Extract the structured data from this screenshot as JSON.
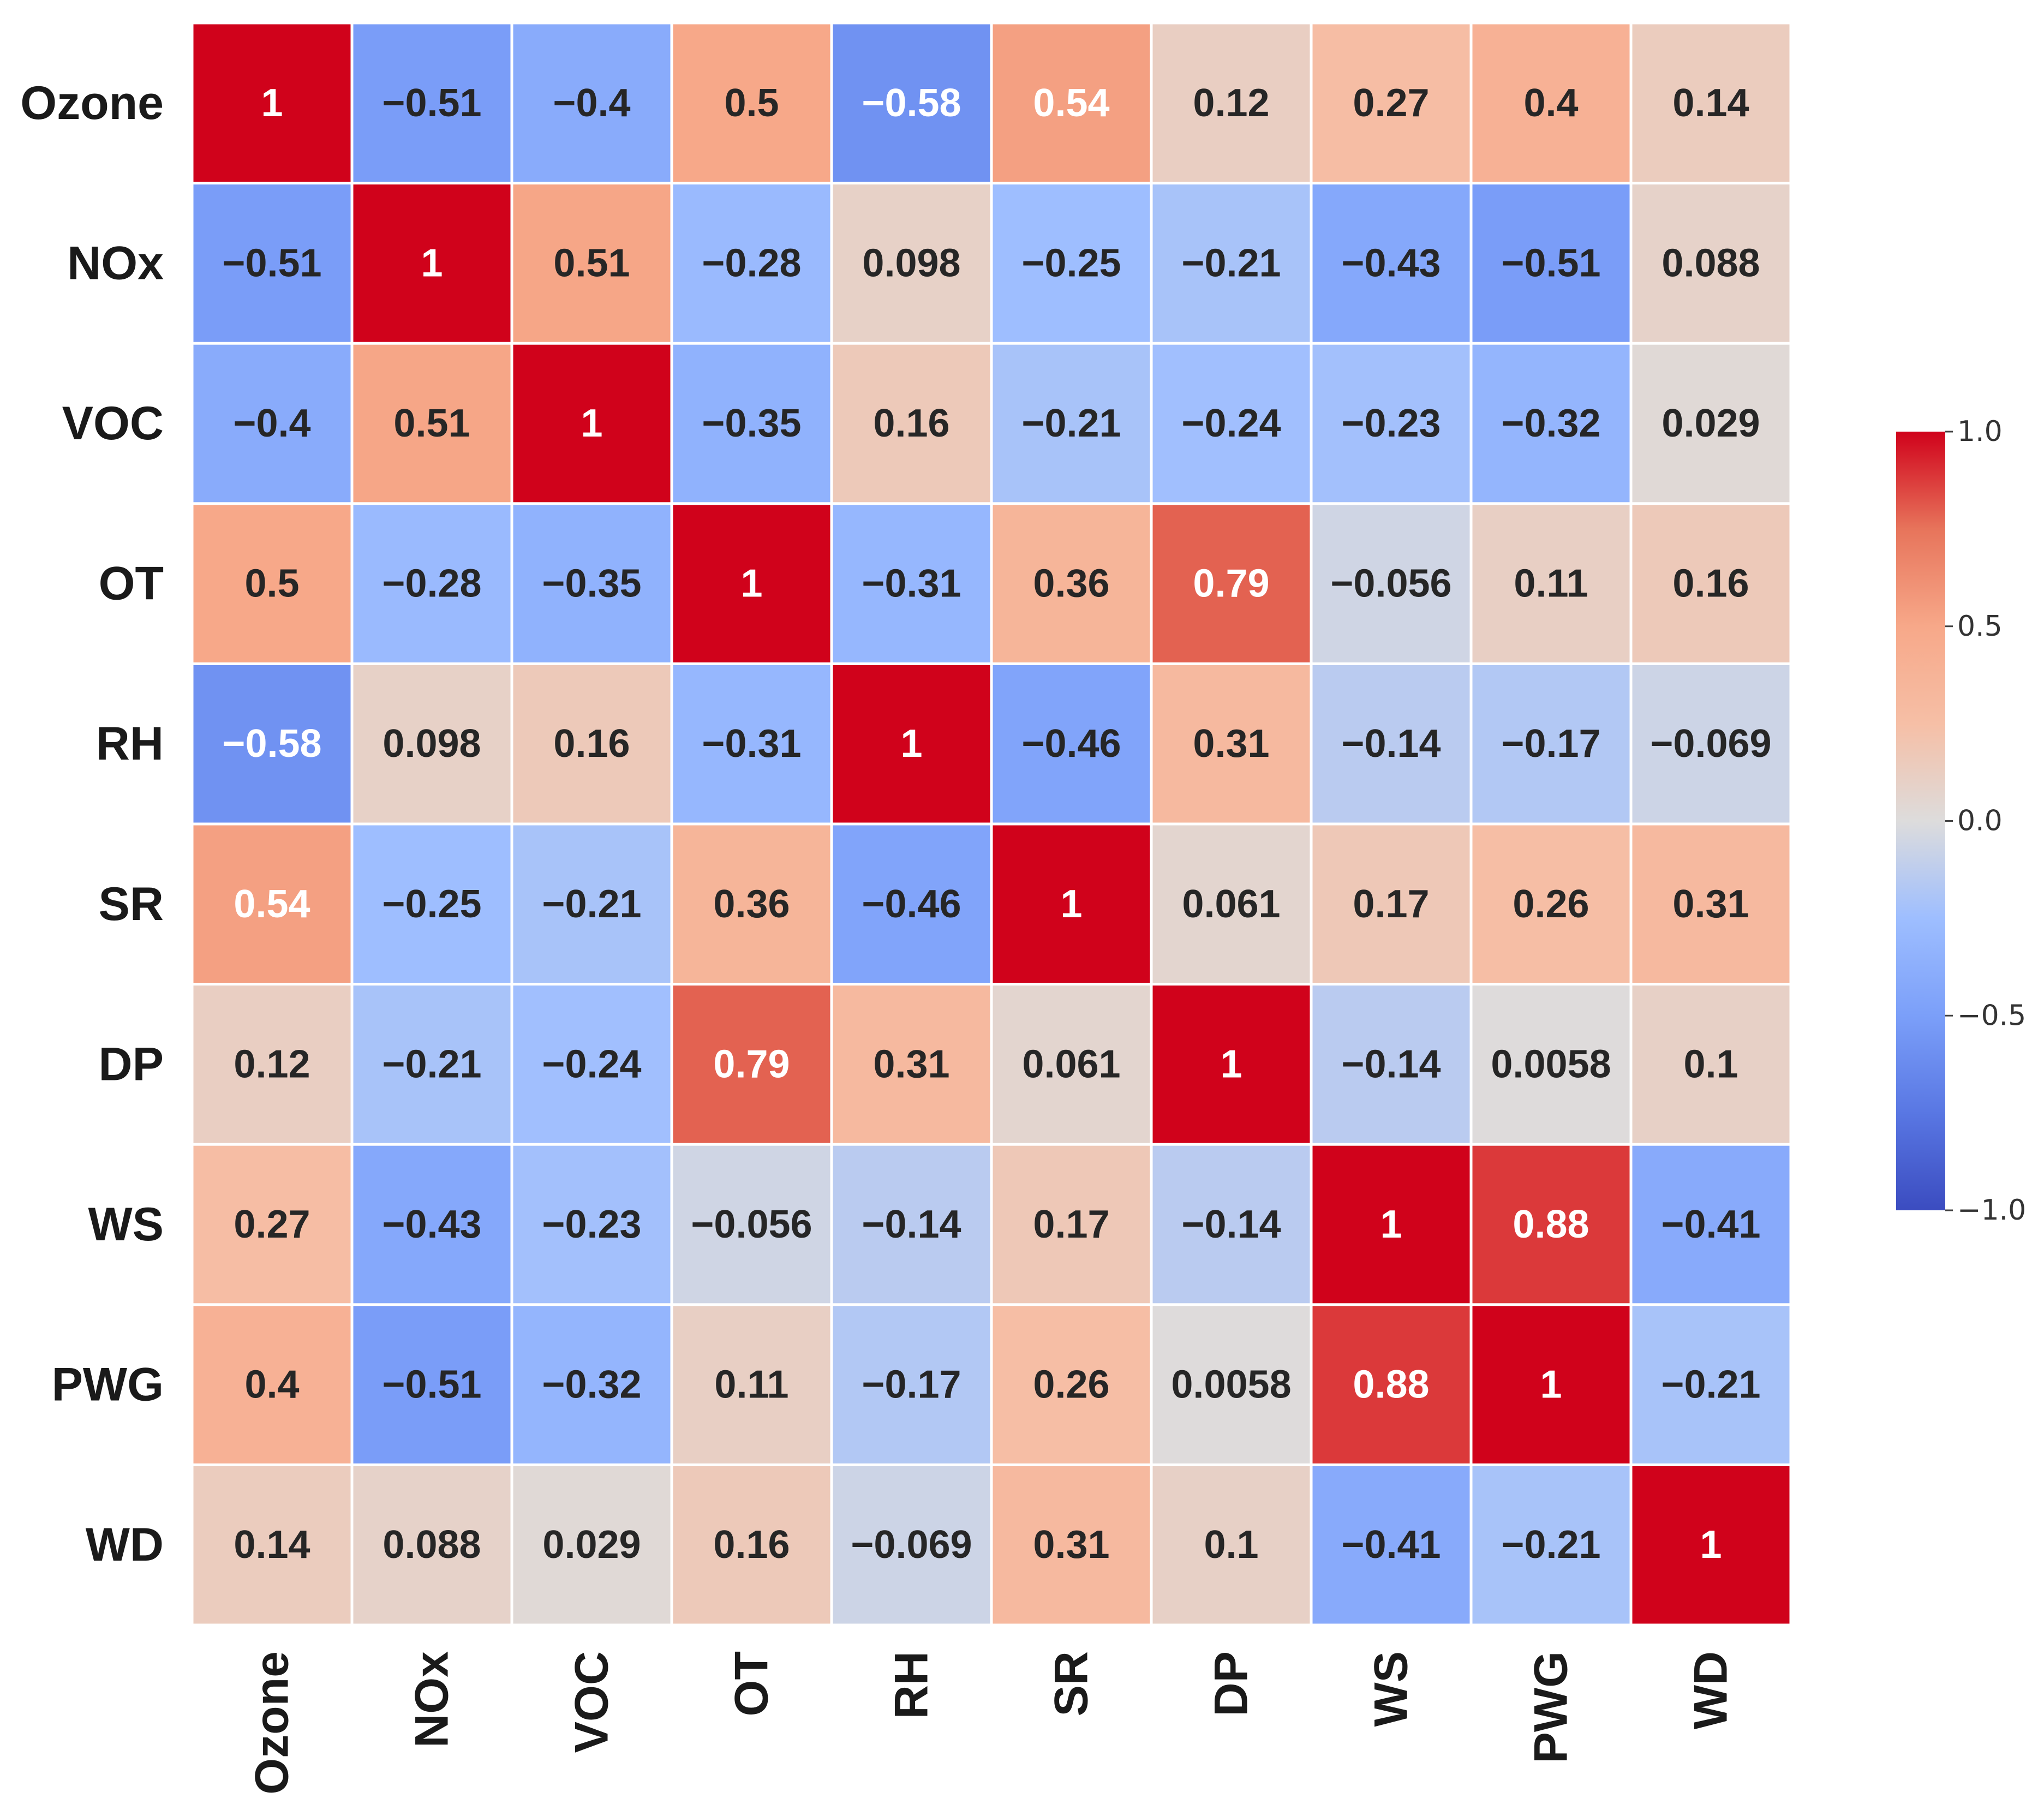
{
  "chart_data": {
    "type": "heatmap",
    "title": "",
    "xlabel": "",
    "ylabel": "",
    "row_labels": [
      "Ozone",
      "NOx",
      "VOC",
      "OT",
      "RH",
      "SR",
      "DP",
      "WS",
      "PWG",
      "WD"
    ],
    "col_labels": [
      "Ozone",
      "NOx",
      "VOC",
      "OT",
      "RH",
      "SR",
      "DP",
      "WS",
      "PWG",
      "WD"
    ],
    "values": [
      [
        1,
        -0.51,
        -0.4,
        0.5,
        -0.58,
        0.54,
        0.12,
        0.27,
        0.4,
        0.14
      ],
      [
        -0.51,
        1,
        0.51,
        -0.28,
        0.098,
        -0.25,
        -0.21,
        -0.43,
        -0.51,
        0.088
      ],
      [
        -0.4,
        0.51,
        1,
        -0.35,
        0.16,
        -0.21,
        -0.24,
        -0.23,
        -0.32,
        0.029
      ],
      [
        0.5,
        -0.28,
        -0.35,
        1,
        -0.31,
        0.36,
        0.79,
        -0.056,
        0.11,
        0.16
      ],
      [
        -0.58,
        0.098,
        0.16,
        -0.31,
        1,
        -0.46,
        0.31,
        -0.14,
        -0.17,
        -0.069
      ],
      [
        0.54,
        -0.25,
        -0.21,
        0.36,
        -0.46,
        1,
        0.061,
        0.17,
        0.26,
        0.31
      ],
      [
        0.12,
        -0.21,
        -0.24,
        0.79,
        0.31,
        0.061,
        1,
        -0.14,
        0.0058,
        0.1
      ],
      [
        0.27,
        -0.43,
        -0.23,
        -0.056,
        -0.14,
        0.17,
        -0.14,
        1,
        0.88,
        -0.41
      ],
      [
        0.4,
        -0.51,
        -0.32,
        0.11,
        -0.17,
        0.26,
        0.0058,
        0.88,
        1,
        -0.21
      ],
      [
        0.14,
        0.088,
        0.029,
        0.16,
        -0.069,
        0.31,
        0.1,
        -0.41,
        -0.21,
        1
      ]
    ],
    "cell_text": [
      [
        "1",
        "−0.51",
        "−0.4",
        "0.5",
        "−0.58",
        "0.54",
        "0.12",
        "0.27",
        "0.4",
        "0.14"
      ],
      [
        "−0.51",
        "1",
        "0.51",
        "−0.28",
        "0.098",
        "−0.25",
        "−0.21",
        "−0.43",
        "−0.51",
        "0.088"
      ],
      [
        "−0.4",
        "0.51",
        "1",
        "−0.35",
        "0.16",
        "−0.21",
        "−0.24",
        "−0.23",
        "−0.32",
        "0.029"
      ],
      [
        "0.5",
        "−0.28",
        "−0.35",
        "1",
        "−0.31",
        "0.36",
        "0.79",
        "−0.056",
        "0.11",
        "0.16"
      ],
      [
        "−0.58",
        "0.098",
        "0.16",
        "−0.31",
        "1",
        "−0.46",
        "0.31",
        "−0.14",
        "−0.17",
        "−0.069"
      ],
      [
        "0.54",
        "−0.25",
        "−0.21",
        "0.36",
        "−0.46",
        "1",
        "0.061",
        "0.17",
        "0.26",
        "0.31"
      ],
      [
        "0.12",
        "−0.21",
        "−0.24",
        "0.79",
        "0.31",
        "0.061",
        "1",
        "−0.14",
        "0.0058",
        "0.1"
      ],
      [
        "0.27",
        "−0.43",
        "−0.23",
        "−0.056",
        "−0.14",
        "0.17",
        "−0.14",
        "1",
        "0.88",
        "−0.41"
      ],
      [
        "0.4",
        "−0.51",
        "−0.32",
        "0.11",
        "−0.17",
        "0.26",
        "0.0058",
        "0.88",
        "1",
        "−0.21"
      ],
      [
        "0.14",
        "0.088",
        "0.029",
        "0.16",
        "−0.069",
        "0.31",
        "0.1",
        "−0.41",
        "−0.21",
        "1"
      ]
    ],
    "colormap": "coolwarm",
    "vmin": -1.0,
    "vmax": 1.0,
    "colorbar": {
      "ticks": [
        1.0,
        0.5,
        0.0,
        -0.5,
        -1.0
      ],
      "tick_labels": [
        "1.0",
        "0.5",
        "0.0",
        "−0.5",
        "−1.0"
      ]
    },
    "display_max": 0.8
  }
}
